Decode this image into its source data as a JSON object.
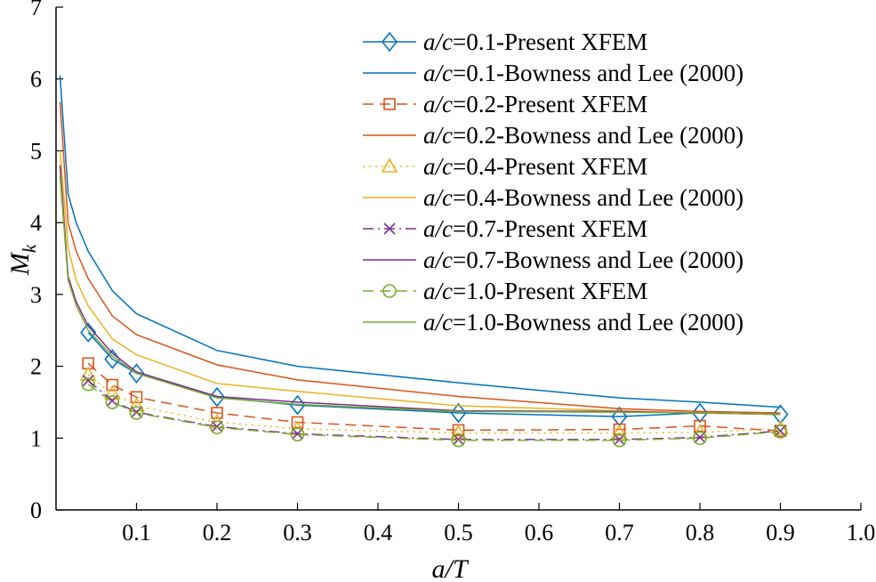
{
  "chart_data": {
    "type": "line",
    "title": "",
    "xlabel": "a/T",
    "ylabel": "M_k",
    "ylabel_main": "M",
    "ylabel_sub": "k",
    "xlim": [
      0.0,
      1.0
    ],
    "ylim": [
      0,
      7
    ],
    "x_ticks": [
      0.1,
      0.2,
      0.3,
      0.4,
      0.5,
      0.6,
      0.7,
      0.8,
      0.9,
      1.0
    ],
    "x_tick_labels": [
      "0.1",
      "0.2",
      "0.3",
      "0.4",
      "0.5",
      "0.6",
      "0.7",
      "0.8",
      "0.9",
      "1.0"
    ],
    "y_ticks": [
      0,
      1,
      2,
      3,
      4,
      5,
      6,
      7
    ],
    "y_tick_labels": [
      "0",
      "1",
      "2",
      "3",
      "4",
      "5",
      "6",
      "7"
    ],
    "grid": false,
    "legend_position": "top-right",
    "series": [
      {
        "name": "a/c=0.1-Present XFEM",
        "ratio_label": "a/c",
        "ratio_value": "=0.1-Present XFEM",
        "color": "#0072BD",
        "style": "solid",
        "marker": "diamond",
        "x": [
          0.04,
          0.07,
          0.1,
          0.2,
          0.3,
          0.5,
          0.7,
          0.8,
          0.9
        ],
        "y": [
          2.47,
          2.1,
          1.9,
          1.57,
          1.46,
          1.35,
          1.3,
          1.35,
          1.33
        ]
      },
      {
        "name": "a/c=0.1-Bowness and Lee (2000)",
        "ratio_label": "a/c",
        "ratio_value": "=0.1-Bowness and Lee (2000)",
        "color": "#0072BD",
        "style": "solid",
        "marker": "none",
        "x": [
          0.005,
          0.015,
          0.025,
          0.04,
          0.07,
          0.1,
          0.2,
          0.3,
          0.5,
          0.7,
          0.8,
          0.9
        ],
        "y": [
          6.05,
          4.4,
          4.0,
          3.6,
          3.05,
          2.73,
          2.22,
          2.0,
          1.77,
          1.56,
          1.5,
          1.43
        ]
      },
      {
        "name": "a/c=0.2-Present XFEM",
        "ratio_label": "a/c",
        "ratio_value": "=0.2-Present XFEM",
        "color": "#D95319",
        "style": "dashed",
        "marker": "square",
        "x": [
          0.04,
          0.07,
          0.1,
          0.2,
          0.3,
          0.5,
          0.7,
          0.8,
          0.9
        ],
        "y": [
          2.04,
          1.74,
          1.57,
          1.35,
          1.22,
          1.11,
          1.12,
          1.17,
          1.1
        ]
      },
      {
        "name": "a/c=0.2-Bowness and Lee (2000)",
        "ratio_label": "a/c",
        "ratio_value": "=0.2-Bowness and Lee (2000)",
        "color": "#D95319",
        "style": "solid",
        "marker": "none",
        "x": [
          0.005,
          0.015,
          0.025,
          0.04,
          0.07,
          0.1,
          0.2,
          0.3,
          0.5,
          0.7,
          0.8,
          0.9
        ],
        "y": [
          5.68,
          4.0,
          3.6,
          3.22,
          2.7,
          2.44,
          2.02,
          1.81,
          1.58,
          1.41,
          1.37,
          1.35
        ]
      },
      {
        "name": "a/c=0.4-Present XFEM",
        "ratio_label": "a/c",
        "ratio_value": "=0.4-Present XFEM",
        "color": "#EDB120",
        "style": "dotted",
        "marker": "triangle",
        "x": [
          0.04,
          0.07,
          0.1,
          0.2,
          0.3,
          0.5,
          0.7,
          0.8,
          0.9
        ],
        "y": [
          1.88,
          1.62,
          1.45,
          1.22,
          1.13,
          1.07,
          1.07,
          1.08,
          1.13
        ]
      },
      {
        "name": "a/c=0.4-Bowness and Lee (2000)",
        "ratio_label": "a/c",
        "ratio_value": "=0.4-Bowness and Lee (2000)",
        "color": "#EDB120",
        "style": "solid",
        "marker": "none",
        "x": [
          0.005,
          0.015,
          0.025,
          0.04,
          0.07,
          0.1,
          0.2,
          0.3,
          0.5,
          0.7,
          0.8,
          0.9
        ],
        "y": [
          5.0,
          3.65,
          3.2,
          2.84,
          2.38,
          2.16,
          1.76,
          1.65,
          1.45,
          1.38,
          1.35,
          1.33
        ]
      },
      {
        "name": "a/c=0.7-Present XFEM",
        "ratio_label": "a/c",
        "ratio_value": "=0.7-Present XFEM",
        "color": "#7E2F8E",
        "style": "dashdot",
        "marker": "cross",
        "x": [
          0.04,
          0.07,
          0.1,
          0.2,
          0.3,
          0.5,
          0.7,
          0.8,
          0.9
        ],
        "y": [
          1.8,
          1.52,
          1.36,
          1.16,
          1.06,
          0.98,
          0.98,
          1.01,
          1.1
        ]
      },
      {
        "name": "a/c=0.7-Bowness and Lee (2000)",
        "ratio_label": "a/c",
        "ratio_value": "=0.7-Bowness and Lee (2000)",
        "color": "#7E2F8E",
        "style": "solid",
        "marker": "none",
        "x": [
          0.005,
          0.015,
          0.025,
          0.04,
          0.07,
          0.1,
          0.2,
          0.3,
          0.5,
          0.7,
          0.8,
          0.9
        ],
        "y": [
          4.8,
          3.25,
          2.9,
          2.56,
          2.18,
          1.92,
          1.58,
          1.5,
          1.38,
          1.37,
          1.35,
          1.33
        ]
      },
      {
        "name": "a/c=1.0-Present XFEM",
        "ratio_label": "a/c",
        "ratio_value": "=1.0-Present XFEM",
        "color": "#77AC30",
        "style": "dashed",
        "marker": "circle",
        "x": [
          0.04,
          0.07,
          0.1,
          0.2,
          0.3,
          0.5,
          0.7,
          0.8,
          0.9
        ],
        "y": [
          1.75,
          1.5,
          1.35,
          1.15,
          1.05,
          0.97,
          0.97,
          1.0,
          1.09
        ]
      },
      {
        "name": "a/c=1.0-Bowness and Lee (2000)",
        "ratio_label": "a/c",
        "ratio_value": "=1.0-Bowness and Lee (2000)",
        "color": "#77AC30",
        "style": "solid",
        "marker": "none",
        "x": [
          0.005,
          0.015,
          0.025,
          0.04,
          0.07,
          0.1,
          0.2,
          0.3,
          0.5,
          0.7,
          0.8,
          0.9
        ],
        "y": [
          4.65,
          3.2,
          2.85,
          2.5,
          2.14,
          1.9,
          1.56,
          1.47,
          1.37,
          1.36,
          1.35,
          1.33
        ]
      }
    ]
  }
}
